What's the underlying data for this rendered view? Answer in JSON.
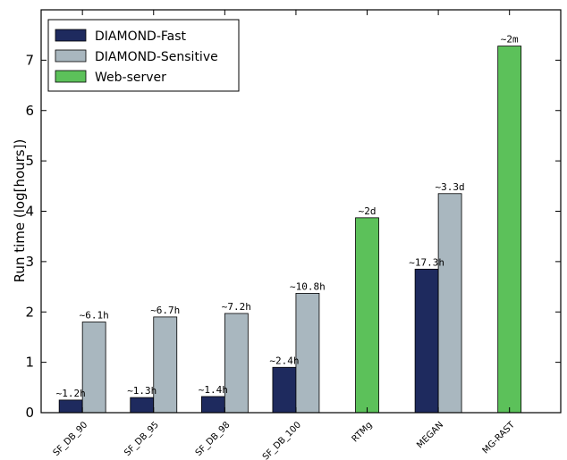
{
  "chart_data": {
    "type": "bar",
    "ylabel": "Run time (log[hours])",
    "ylim": [
      0,
      8
    ],
    "yticks": [
      "0",
      "1",
      "2",
      "3",
      "4",
      "5",
      "6",
      "7"
    ],
    "categories": [
      "SF_DB_90",
      "SF_DB_95",
      "SF_DB_98",
      "SF_DB_100",
      "RTMg",
      "MEGAN",
      "MG-RAST"
    ],
    "legend_position": "top-left",
    "series": [
      {
        "name": "DIAMOND-Fast",
        "color": "#1e2a5e",
        "values": [
          0.25,
          0.3,
          0.32,
          0.9,
          null,
          2.85,
          null
        ],
        "labels": [
          "~1.2h",
          "~1.3h",
          "~1.4h",
          "~2.4h",
          null,
          "~17.3h",
          null
        ]
      },
      {
        "name": "DIAMOND-Sensitive",
        "color": "#a9b7bf",
        "values": [
          1.8,
          1.9,
          1.97,
          2.37,
          null,
          4.35,
          null
        ],
        "labels": [
          "~6.1h",
          "~6.7h",
          "~7.2h",
          "~10.8h",
          null,
          "~3.3d",
          null
        ]
      },
      {
        "name": "Web-server",
        "color": "#5cc15a",
        "values": [
          null,
          null,
          null,
          null,
          3.87,
          null,
          7.28
        ],
        "labels": [
          null,
          null,
          null,
          null,
          "~2d",
          null,
          "~2m"
        ]
      }
    ]
  }
}
